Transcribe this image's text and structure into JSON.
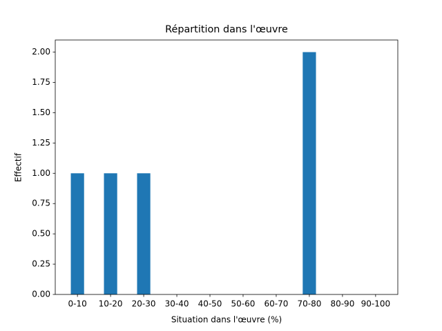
{
  "chart_data": {
    "type": "bar",
    "title": "Répartition dans l'œuvre",
    "xlabel": "Situation dans l'œuvre (%)",
    "ylabel": "Effectif",
    "categories": [
      "0-10",
      "10-20",
      "20-30",
      "30-40",
      "40-50",
      "50-60",
      "60-70",
      "70-80",
      "80-90",
      "90-100"
    ],
    "values": [
      1,
      1,
      1,
      0,
      0,
      0,
      0,
      2,
      0,
      0
    ],
    "color": "#1f77b4",
    "ylim": [
      0,
      2.1
    ],
    "yticks": [
      {
        "value": 0,
        "label": "0.00"
      },
      {
        "value": 0.25,
        "label": "0.25"
      },
      {
        "value": 0.5,
        "label": "0.50"
      },
      {
        "value": 0.75,
        "label": "0.75"
      },
      {
        "value": 1,
        "label": "1.00"
      },
      {
        "value": 1.25,
        "label": "1.25"
      },
      {
        "value": 1.5,
        "label": "1.50"
      },
      {
        "value": 1.75,
        "label": "1.75"
      },
      {
        "value": 2,
        "label": "2.00"
      }
    ],
    "grid": false
  }
}
